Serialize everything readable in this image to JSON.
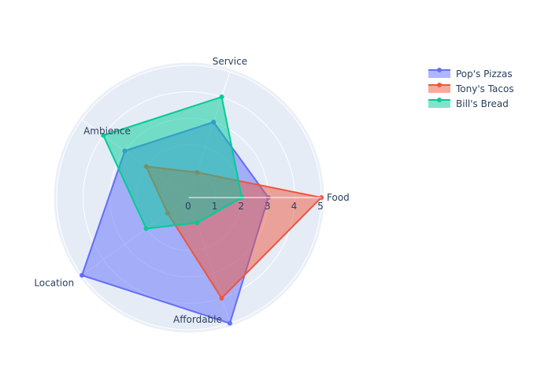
{
  "chart_data": {
    "type": "radar",
    "axes": [
      "Food",
      "Service",
      "Ambience",
      "Location",
      "Affordable"
    ],
    "radial_ticks": [
      "0",
      "1",
      "2",
      "3",
      "4",
      "5"
    ],
    "rrange": [
      0,
      5
    ],
    "series": [
      {
        "name": "Pop's Pizzas",
        "values": [
          3,
          3,
          3,
          5,
          5
        ],
        "color": "#636efa"
      },
      {
        "name": "Tony's Tacos",
        "values": [
          5,
          1,
          2,
          1,
          4
        ],
        "color": "#ef553b"
      },
      {
        "name": "Bill's Bread",
        "values": [
          2,
          4,
          4,
          2,
          1
        ],
        "color": "#00cc96"
      }
    ],
    "legend_position": "top-right",
    "grid": true
  }
}
